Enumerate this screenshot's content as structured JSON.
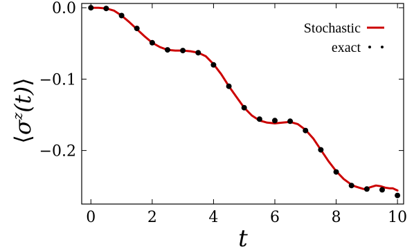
{
  "chart_data": {
    "type": "line",
    "title": "",
    "xlabel": "t",
    "ylabel_tex": {
      "left": "⟨",
      "sigma": "σ",
      "sup": "z",
      "arg": "(t)",
      "right": "⟩"
    },
    "xlim": [
      -0.3,
      10.2
    ],
    "ylim": [
      -0.275,
      0.006
    ],
    "xticks": [
      0,
      2,
      4,
      6,
      8,
      10
    ],
    "xtick_labels": [
      "0",
      "2",
      "4",
      "6",
      "8",
      "10"
    ],
    "yticks": [
      0.0,
      -0.1,
      -0.2
    ],
    "ytick_labels": [
      "0.0",
      "−0.1",
      "−0.2"
    ],
    "grid": false,
    "legend_position": "top-right",
    "colors": {
      "stochastic": "#cc0000",
      "exact": "#000000"
    },
    "series": [
      {
        "name": "Stochastic",
        "style": "line",
        "x": [
          0,
          0.25,
          0.5,
          0.75,
          1.0,
          1.25,
          1.5,
          1.75,
          2.0,
          2.25,
          2.5,
          2.75,
          3.0,
          3.25,
          3.5,
          3.75,
          4.0,
          4.25,
          4.5,
          4.75,
          5.0,
          5.25,
          5.5,
          5.75,
          6.0,
          6.25,
          6.5,
          6.75,
          7.0,
          7.25,
          7.5,
          7.75,
          8.0,
          8.25,
          8.5,
          8.6,
          8.75,
          8.9,
          9.0,
          9.15,
          9.3,
          9.45,
          9.6,
          9.75,
          9.85,
          9.95,
          10.0
        ],
        "values": [
          0.0,
          0.0,
          -0.001,
          -0.004,
          -0.011,
          -0.02,
          -0.03,
          -0.04,
          -0.049,
          -0.055,
          -0.059,
          -0.06,
          -0.06,
          -0.061,
          -0.063,
          -0.068,
          -0.079,
          -0.093,
          -0.11,
          -0.125,
          -0.14,
          -0.151,
          -0.158,
          -0.161,
          -0.162,
          -0.161,
          -0.16,
          -0.163,
          -0.171,
          -0.183,
          -0.199,
          -0.215,
          -0.229,
          -0.24,
          -0.248,
          -0.25,
          -0.252,
          -0.254,
          -0.253,
          -0.251,
          -0.249,
          -0.25,
          -0.252,
          -0.253,
          -0.253,
          -0.255,
          -0.256
        ]
      },
      {
        "name": "exact",
        "style": "markers",
        "x": [
          0,
          0.5,
          1.0,
          1.5,
          2.0,
          2.5,
          3.0,
          3.5,
          4.0,
          4.5,
          5.0,
          5.5,
          6.0,
          6.5,
          7.0,
          7.5,
          8.0,
          8.5,
          9.0,
          9.5,
          10.0
        ],
        "values": [
          0.0,
          -0.001,
          -0.011,
          -0.029,
          -0.049,
          -0.059,
          -0.06,
          -0.063,
          -0.08,
          -0.11,
          -0.14,
          -0.156,
          -0.158,
          -0.159,
          -0.172,
          -0.199,
          -0.23,
          -0.249,
          -0.254,
          -0.255,
          -0.263
        ]
      }
    ]
  }
}
